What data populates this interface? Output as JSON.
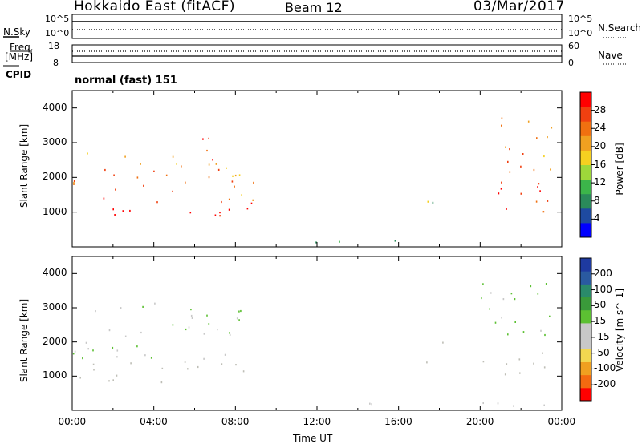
{
  "header": {
    "title": "Hokkaido East (fitACF)",
    "beam": "Beam 12",
    "date": "03/Mar/2017"
  },
  "noise_panel": {
    "left_label": "N.Sky",
    "right_label": "N.Search",
    "ticks_left": [
      "10^5",
      "10^0"
    ],
    "ticks_right": [
      "10^5",
      "10^0"
    ]
  },
  "freq_panel": {
    "left_label_1": "Freq.",
    "left_label_2": "[MHz]",
    "ticks_left": [
      "18",
      "8"
    ],
    "right_label": "Nave",
    "ticks_right": [
      "60",
      "0"
    ]
  },
  "cpid": {
    "label": "CPID",
    "value": "normal (fast) 151"
  },
  "colors": {
    "power_scale": [
      "#0000ff",
      "#1e4aa0",
      "#2a8a5a",
      "#3cb54a",
      "#9ed83a",
      "#f5d020",
      "#f0a020",
      "#f07010",
      "#f04010",
      "#ff0000"
    ],
    "velocity_scale": [
      "#ff0000",
      "#f46a10",
      "#f0a020",
      "#f2d850",
      "#c8c8c8",
      "#c8c8c8",
      "#5cc032",
      "#3a9a3a",
      "#2a8a6a",
      "#2a5aa0",
      "#1e3aa0"
    ],
    "ground_scatter": "#bebeb6"
  },
  "chart_data": [
    {
      "type": "heatmap",
      "title": "",
      "ylabel": "Slant Range [km]",
      "xlabel": "",
      "x_range_hours": [
        0,
        24
      ],
      "ylim": [
        0,
        4500
      ],
      "yticks": [
        "1000",
        "2000",
        "3000",
        "4000"
      ],
      "colorbar": {
        "label": "Power [dB]",
        "range": [
          0,
          32
        ],
        "ticks": [
          "28",
          "24",
          "20",
          "16",
          "12",
          "8",
          "4"
        ]
      },
      "regions": [
        {
          "t": [
            0.0,
            8.8
          ],
          "r": [
            800,
            1500
          ],
          "value": 30
        },
        {
          "t": [
            0.0,
            8.3
          ],
          "r": [
            1500,
            2800
          ],
          "value": 24
        },
        {
          "t": [
            5.5,
            7.3
          ],
          "r": [
            2800,
            3300
          ],
          "value": 26
        },
        {
          "t": [
            7.6,
            9.4
          ],
          "r": [
            1200,
            2500
          ],
          "value": 20
        },
        {
          "t": [
            9.0,
            17.5
          ],
          "r": [
            150,
            300
          ],
          "value": 8
        },
        {
          "t": [
            17.3,
            18.2
          ],
          "r": [
            1200,
            2200
          ],
          "value": 14
        },
        {
          "t": [
            20.0,
            24.0
          ],
          "r": [
            1000,
            2200
          ],
          "value": 28
        },
        {
          "t": [
            20.0,
            23.5
          ],
          "r": [
            2200,
            3800
          ],
          "value": 22
        }
      ]
    },
    {
      "type": "heatmap",
      "title": "",
      "ylabel": "Slant Range [km]",
      "xlabel": "Time UT",
      "x_range_hours": [
        0,
        24
      ],
      "ylim": [
        0,
        4500
      ],
      "yticks": [
        "1000",
        "2000",
        "3000",
        "4000"
      ],
      "xticks": [
        "00:00",
        "04:00",
        "08:00",
        "12:00",
        "16:00",
        "20:00",
        "00:00"
      ],
      "colorbar": {
        "label": "Velocity [m s^-1]",
        "range": [
          -250,
          250
        ],
        "ticks": [
          "200",
          "100",
          "50",
          "15",
          "-15",
          "-50",
          "-100",
          "-200"
        ]
      },
      "regions": [
        {
          "t": [
            0.0,
            8.8
          ],
          "r": [
            800,
            1500
          ],
          "value": 0,
          "ground_scatter": true
        },
        {
          "t": [
            0.0,
            8.3
          ],
          "r": [
            1500,
            3300
          ],
          "value": 20
        },
        {
          "t": [
            17.3,
            18.2
          ],
          "r": [
            1200,
            2200
          ],
          "value": 0,
          "ground_scatter": true
        },
        {
          "t": [
            20.0,
            24.0
          ],
          "r": [
            1000,
            1800
          ],
          "value": 0,
          "ground_scatter": true
        },
        {
          "t": [
            20.0,
            23.5
          ],
          "r": [
            1800,
            3800
          ],
          "value": 40
        },
        {
          "t": [
            9.0,
            24.0
          ],
          "r": [
            150,
            300
          ],
          "value": -30
        }
      ]
    }
  ]
}
